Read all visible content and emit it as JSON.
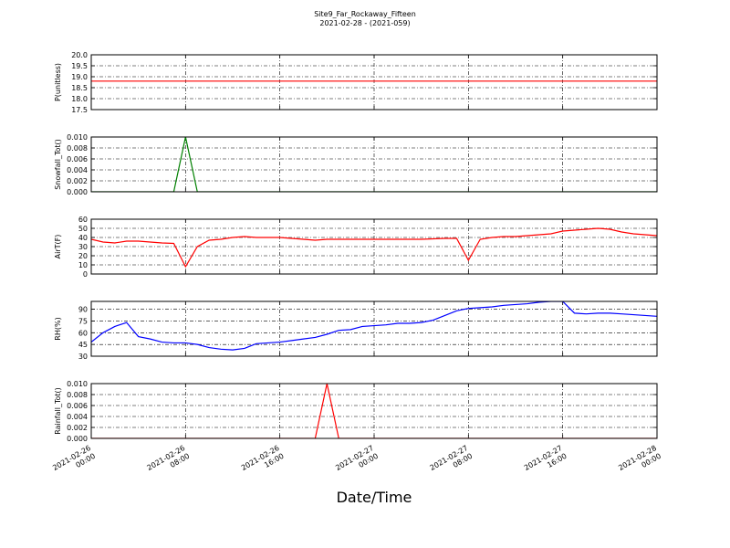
{
  "figure": {
    "title": "Site9_Far_Rockaway_Fifteen",
    "subtitle": "2021-02-28 - (2021-059)",
    "xlabel": "Date/Time"
  },
  "chart_data": [
    {
      "type": "line",
      "ylabel": "P(unitless)",
      "color": "#ff0000",
      "grid": true,
      "x": [
        "2021-02-26 00:00",
        "2021-02-26 01:00",
        "2021-02-26 02:00",
        "2021-02-26 03:00",
        "2021-02-26 04:00",
        "2021-02-26 05:00",
        "2021-02-26 06:00",
        "2021-02-26 07:00",
        "2021-02-26 08:00",
        "2021-02-26 09:00",
        "2021-02-26 10:00",
        "2021-02-26 11:00",
        "2021-02-26 12:00",
        "2021-02-26 13:00",
        "2021-02-26 14:00",
        "2021-02-26 15:00",
        "2021-02-26 16:00",
        "2021-02-26 17:00",
        "2021-02-26 18:00",
        "2021-02-26 19:00",
        "2021-02-26 20:00",
        "2021-02-26 21:00",
        "2021-02-26 22:00",
        "2021-02-26 23:00",
        "2021-02-27 00:00",
        "2021-02-27 01:00",
        "2021-02-27 02:00",
        "2021-02-27 03:00",
        "2021-02-27 04:00",
        "2021-02-27 05:00",
        "2021-02-27 06:00",
        "2021-02-27 07:00",
        "2021-02-27 08:00",
        "2021-02-27 09:00",
        "2021-02-27 10:00",
        "2021-02-27 11:00",
        "2021-02-27 12:00",
        "2021-02-27 13:00",
        "2021-02-27 14:00",
        "2021-02-27 15:00",
        "2021-02-27 16:00",
        "2021-02-27 17:00",
        "2021-02-27 18:00",
        "2021-02-27 19:00",
        "2021-02-27 20:00",
        "2021-02-27 21:00",
        "2021-02-27 22:00",
        "2021-02-27 23:00",
        "2021-02-28 00:00"
      ],
      "values": [
        18.8,
        18.8,
        18.8,
        18.8,
        18.8,
        18.8,
        18.8,
        18.8,
        18.8,
        18.8,
        18.8,
        18.8,
        18.8,
        18.8,
        18.8,
        18.8,
        18.8,
        18.8,
        18.8,
        18.8,
        18.8,
        18.8,
        18.8,
        18.8,
        18.8,
        18.8,
        18.8,
        18.8,
        18.8,
        18.8,
        18.8,
        18.8,
        18.8,
        18.8,
        18.8,
        18.8,
        18.8,
        18.8,
        18.8,
        18.8,
        18.8,
        18.8,
        18.8,
        18.8,
        18.8,
        18.8,
        18.8,
        18.8,
        18.8
      ],
      "ylim": [
        17.5,
        20
      ],
      "yticks": [
        17.5,
        {
          "value": 18,
          "label": "18.0"
        },
        18.5,
        {
          "value": 19,
          "label": "19.0"
        },
        19.5,
        {
          "value": 20,
          "label": "20.0"
        }
      ],
      "xlim": [
        "2021-02-26 00:00",
        "2021-02-28 00:00"
      ],
      "xticks": [
        "2021-02-26 00:00",
        "2021-02-26 08:00",
        "2021-02-26 16:00",
        "2021-02-27 00:00",
        "2021-02-27 08:00",
        "2021-02-27 16:00",
        "2021-02-28 00:00"
      ]
    },
    {
      "type": "line",
      "ylabel": "Snowfall_Tot()",
      "color": "#008000",
      "grid": true,
      "x": [
        "2021-02-26 00:00",
        "2021-02-26 01:00",
        "2021-02-26 02:00",
        "2021-02-26 03:00",
        "2021-02-26 04:00",
        "2021-02-26 05:00",
        "2021-02-26 06:00",
        "2021-02-26 07:00",
        "2021-02-26 08:00",
        "2021-02-26 09:00",
        "2021-02-26 10:00",
        "2021-02-26 11:00",
        "2021-02-26 12:00",
        "2021-02-26 13:00",
        "2021-02-26 14:00",
        "2021-02-26 15:00",
        "2021-02-26 16:00",
        "2021-02-26 17:00",
        "2021-02-26 18:00",
        "2021-02-26 19:00",
        "2021-02-26 20:00",
        "2021-02-26 21:00",
        "2021-02-26 22:00",
        "2021-02-26 23:00",
        "2021-02-27 00:00",
        "2021-02-27 01:00",
        "2021-02-27 02:00",
        "2021-02-27 03:00",
        "2021-02-27 04:00",
        "2021-02-27 05:00",
        "2021-02-27 06:00",
        "2021-02-27 07:00",
        "2021-02-27 08:00",
        "2021-02-27 09:00",
        "2021-02-27 10:00",
        "2021-02-27 11:00",
        "2021-02-27 12:00",
        "2021-02-27 13:00",
        "2021-02-27 14:00",
        "2021-02-27 15:00",
        "2021-02-27 16:00",
        "2021-02-27 17:00",
        "2021-02-27 18:00",
        "2021-02-27 19:00",
        "2021-02-27 20:00",
        "2021-02-27 21:00",
        "2021-02-27 22:00",
        "2021-02-27 23:00",
        "2021-02-28 00:00"
      ],
      "values": [
        0,
        0,
        0,
        0,
        0,
        0,
        0,
        0,
        0.01,
        0,
        0,
        0,
        0,
        0,
        0,
        0,
        0,
        0,
        0,
        0,
        0,
        0,
        0,
        0,
        0,
        0,
        0,
        0,
        0,
        0,
        0,
        0,
        0,
        0,
        0,
        0,
        0,
        0,
        0,
        0,
        0,
        0,
        0,
        0,
        0,
        0,
        0,
        0,
        0
      ],
      "ylim": [
        0,
        0.01
      ],
      "yticks": [
        {
          "value": 0,
          "label": "0.000"
        },
        0.002,
        0.004,
        0.006,
        0.008,
        {
          "value": 0.01,
          "label": "0.010"
        }
      ],
      "xlim": [
        "2021-02-26 00:00",
        "2021-02-28 00:00"
      ],
      "xticks": [
        "2021-02-26 00:00",
        "2021-02-26 08:00",
        "2021-02-26 16:00",
        "2021-02-27 00:00",
        "2021-02-27 08:00",
        "2021-02-27 16:00",
        "2021-02-28 00:00"
      ]
    },
    {
      "type": "line",
      "ylabel": "AirT(F)",
      "color": "#ff0000",
      "grid": true,
      "x": [
        "2021-02-26 00:00",
        "2021-02-26 01:00",
        "2021-02-26 02:00",
        "2021-02-26 03:00",
        "2021-02-26 04:00",
        "2021-02-26 05:00",
        "2021-02-26 06:00",
        "2021-02-26 07:00",
        "2021-02-26 08:00",
        "2021-02-26 09:00",
        "2021-02-26 10:00",
        "2021-02-26 11:00",
        "2021-02-26 12:00",
        "2021-02-26 13:00",
        "2021-02-26 14:00",
        "2021-02-26 15:00",
        "2021-02-26 16:00",
        "2021-02-26 17:00",
        "2021-02-26 18:00",
        "2021-02-26 19:00",
        "2021-02-26 20:00",
        "2021-02-26 21:00",
        "2021-02-26 22:00",
        "2021-02-26 23:00",
        "2021-02-27 00:00",
        "2021-02-27 01:00",
        "2021-02-27 02:00",
        "2021-02-27 03:00",
        "2021-02-27 04:00",
        "2021-02-27 05:00",
        "2021-02-27 06:00",
        "2021-02-27 07:00",
        "2021-02-27 08:00",
        "2021-02-27 09:00",
        "2021-02-27 10:00",
        "2021-02-27 11:00",
        "2021-02-27 12:00",
        "2021-02-27 13:00",
        "2021-02-27 14:00",
        "2021-02-27 15:00",
        "2021-02-27 16:00",
        "2021-02-27 17:00",
        "2021-02-27 18:00",
        "2021-02-27 19:00",
        "2021-02-27 20:00",
        "2021-02-27 21:00",
        "2021-02-27 22:00",
        "2021-02-27 23:00",
        "2021-02-28 00:00"
      ],
      "values": [
        38,
        35,
        34,
        36,
        36,
        35,
        34,
        33.5,
        8,
        30,
        37,
        38,
        40,
        41,
        40,
        40,
        40,
        39,
        38,
        37,
        38,
        38,
        38,
        38,
        38,
        38,
        38,
        38,
        38,
        38.5,
        39,
        39,
        15,
        38,
        40,
        41,
        41,
        42,
        43,
        44,
        47,
        48,
        49,
        50,
        49,
        46,
        44,
        43,
        42
      ],
      "ylim": [
        0,
        60
      ],
      "yticks": [
        0,
        10,
        20,
        30,
        40,
        50,
        60
      ],
      "xlim": [
        "2021-02-26 00:00",
        "2021-02-28 00:00"
      ],
      "xticks": [
        "2021-02-26 00:00",
        "2021-02-26 08:00",
        "2021-02-26 16:00",
        "2021-02-27 00:00",
        "2021-02-27 08:00",
        "2021-02-27 16:00",
        "2021-02-28 00:00"
      ]
    },
    {
      "type": "line",
      "ylabel": "RH(%)",
      "color": "#0000ff",
      "grid": true,
      "x": [
        "2021-02-26 00:00",
        "2021-02-26 01:00",
        "2021-02-26 02:00",
        "2021-02-26 03:00",
        "2021-02-26 04:00",
        "2021-02-26 05:00",
        "2021-02-26 06:00",
        "2021-02-26 07:00",
        "2021-02-26 08:00",
        "2021-02-26 09:00",
        "2021-02-26 10:00",
        "2021-02-26 11:00",
        "2021-02-26 12:00",
        "2021-02-26 13:00",
        "2021-02-26 14:00",
        "2021-02-26 15:00",
        "2021-02-26 16:00",
        "2021-02-26 17:00",
        "2021-02-26 18:00",
        "2021-02-26 19:00",
        "2021-02-26 20:00",
        "2021-02-26 21:00",
        "2021-02-26 22:00",
        "2021-02-26 23:00",
        "2021-02-27 00:00",
        "2021-02-27 01:00",
        "2021-02-27 02:00",
        "2021-02-27 03:00",
        "2021-02-27 04:00",
        "2021-02-27 05:00",
        "2021-02-27 06:00",
        "2021-02-27 07:00",
        "2021-02-27 08:00",
        "2021-02-27 09:00",
        "2021-02-27 10:00",
        "2021-02-27 11:00",
        "2021-02-27 12:00",
        "2021-02-27 13:00",
        "2021-02-27 14:00",
        "2021-02-27 15:00",
        "2021-02-27 16:00",
        "2021-02-27 17:00",
        "2021-02-27 18:00",
        "2021-02-27 19:00",
        "2021-02-27 20:00",
        "2021-02-27 21:00",
        "2021-02-27 22:00",
        "2021-02-27 23:00",
        "2021-02-28 00:00"
      ],
      "values": [
        48,
        60,
        68,
        73,
        55,
        52,
        48,
        47,
        47,
        45,
        41,
        39,
        38,
        40,
        46,
        47,
        48,
        50,
        52,
        54,
        58,
        63,
        64,
        68,
        69,
        70,
        72,
        72,
        73,
        76,
        82,
        88,
        91,
        92,
        93,
        95,
        96,
        97,
        99,
        100,
        100,
        85,
        84,
        85,
        85,
        84,
        83,
        82,
        81
      ],
      "ylim": [
        30,
        100
      ],
      "yticks": [
        30,
        45,
        60,
        75,
        90
      ],
      "xlim": [
        "2021-02-26 00:00",
        "2021-02-28 00:00"
      ],
      "xticks": [
        "2021-02-26 00:00",
        "2021-02-26 08:00",
        "2021-02-26 16:00",
        "2021-02-27 00:00",
        "2021-02-27 08:00",
        "2021-02-27 16:00",
        "2021-02-28 00:00"
      ]
    },
    {
      "type": "line",
      "ylabel": "Rainfall_Tot()",
      "color": "#ff0000",
      "grid": true,
      "x": [
        "2021-02-26 00:00",
        "2021-02-26 01:00",
        "2021-02-26 02:00",
        "2021-02-26 03:00",
        "2021-02-26 04:00",
        "2021-02-26 05:00",
        "2021-02-26 06:00",
        "2021-02-26 07:00",
        "2021-02-26 08:00",
        "2021-02-26 09:00",
        "2021-02-26 10:00",
        "2021-02-26 11:00",
        "2021-02-26 12:00",
        "2021-02-26 13:00",
        "2021-02-26 14:00",
        "2021-02-26 15:00",
        "2021-02-26 16:00",
        "2021-02-26 17:00",
        "2021-02-26 18:00",
        "2021-02-26 19:00",
        "2021-02-26 20:00",
        "2021-02-26 21:00",
        "2021-02-26 22:00",
        "2021-02-26 23:00",
        "2021-02-27 00:00",
        "2021-02-27 01:00",
        "2021-02-27 02:00",
        "2021-02-27 03:00",
        "2021-02-27 04:00",
        "2021-02-27 05:00",
        "2021-02-27 06:00",
        "2021-02-27 07:00",
        "2021-02-27 08:00",
        "2021-02-27 09:00",
        "2021-02-27 10:00",
        "2021-02-27 11:00",
        "2021-02-27 12:00",
        "2021-02-27 13:00",
        "2021-02-27 14:00",
        "2021-02-27 15:00",
        "2021-02-27 16:00",
        "2021-02-27 17:00",
        "2021-02-27 18:00",
        "2021-02-27 19:00",
        "2021-02-27 20:00",
        "2021-02-27 21:00",
        "2021-02-27 22:00",
        "2021-02-27 23:00",
        "2021-02-28 00:00"
      ],
      "values": [
        0,
        0,
        0,
        0,
        0,
        0,
        0,
        0,
        0,
        0,
        0,
        0,
        0,
        0,
        0,
        0,
        0,
        0,
        0,
        0,
        0.01,
        0,
        0,
        0,
        0,
        0,
        0,
        0,
        0,
        0,
        0,
        0,
        0,
        0,
        0,
        0,
        0,
        0,
        0,
        0,
        0,
        0,
        0,
        0,
        0,
        0,
        0,
        0,
        0
      ],
      "ylim": [
        0,
        0.01
      ],
      "yticks": [
        {
          "value": 0,
          "label": "0.000"
        },
        0.002,
        0.004,
        0.006,
        0.008,
        {
          "value": 0.01,
          "label": "0.010"
        }
      ],
      "xlim": [
        "2021-02-26 00:00",
        "2021-02-28 00:00"
      ],
      "xticks": [
        "2021-02-26 00:00",
        "2021-02-26 08:00",
        "2021-02-26 16:00",
        "2021-02-27 00:00",
        "2021-02-27 08:00",
        "2021-02-27 16:00",
        "2021-02-28 00:00"
      ]
    }
  ]
}
